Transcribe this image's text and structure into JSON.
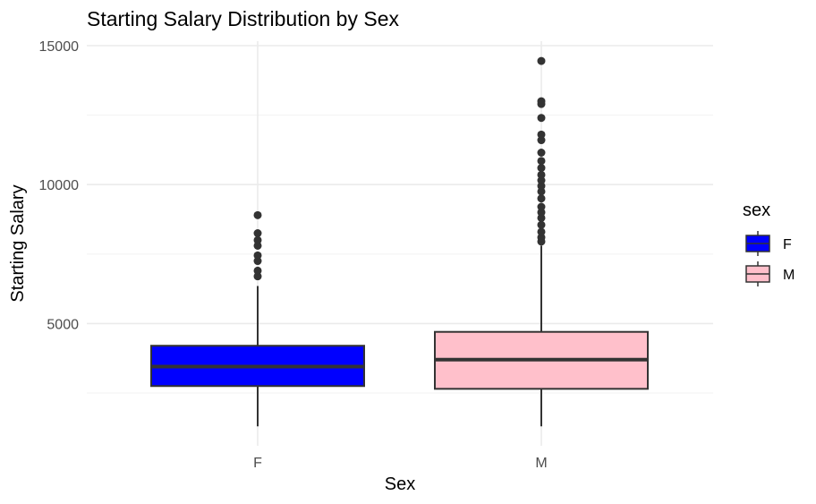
{
  "chart_data": {
    "type": "boxplot",
    "title": "Starting Salary Distribution by Sex",
    "xlabel": "Sex",
    "ylabel": "Starting Salary",
    "categories": [
      "F",
      "M"
    ],
    "ylim": [
      0,
      15500
    ],
    "yticks": [
      5000,
      10000,
      15000
    ],
    "ytick_labels": [
      "5000",
      "10000",
      "15000"
    ],
    "grid": true,
    "legend": {
      "title": "sex",
      "position": "right",
      "entries": [
        {
          "label": "F",
          "fill": "#0000ff"
        },
        {
          "label": "M",
          "fill": "#ffc0cb"
        }
      ]
    },
    "series": [
      {
        "category": "F",
        "fill": "#0000ff",
        "whisker_low": 1300,
        "q1": 2750,
        "median": 3450,
        "q3": 4200,
        "whisker_high": 6350,
        "outliers": [
          6700,
          6900,
          7250,
          7450,
          7800,
          8000,
          8250,
          8900
        ]
      },
      {
        "category": "M",
        "fill": "#ffc0cb",
        "whisker_low": 1300,
        "q1": 2650,
        "median": 3700,
        "q3": 4700,
        "whisker_high": 7800,
        "outliers": [
          7950,
          8100,
          8300,
          8550,
          8800,
          9000,
          9200,
          9500,
          9750,
          9950,
          10150,
          10350,
          10600,
          10850,
          11150,
          11600,
          11800,
          12400,
          12900,
          13000,
          14450
        ]
      }
    ]
  }
}
